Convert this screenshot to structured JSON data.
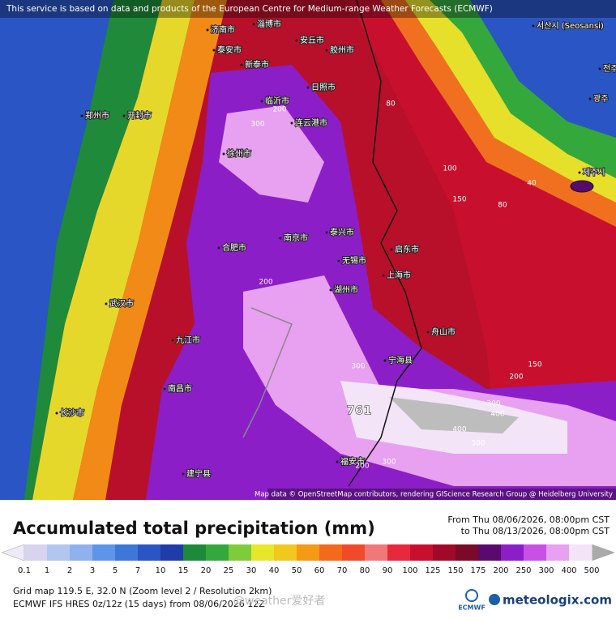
{
  "header": {
    "notice": "This service is based on data and products of the European Centre for Medium-range Weather Forecasts (ECMWF)"
  },
  "map": {
    "attribution": "Map data © OpenStreetMap contributors, rendering GIScience Research Group @ Heidelberg University",
    "max_label": "761",
    "cities": [
      "济南市",
      "淄博市",
      "安丘市",
      "胶州市",
      "泰安市",
      "新泰市",
      "临沂市",
      "日照市",
      "连云港市",
      "郑州市",
      "开封市",
      "徐州市",
      "南京市",
      "合肥市",
      "泰兴市",
      "无锡市",
      "上海市",
      "启东市",
      "湖州市",
      "舟山市",
      "宁海县",
      "九江市",
      "南昌市",
      "武汉市",
      "长沙市",
      "福安市",
      "建宁县",
      "제주시",
      "광주",
      "서산시 (Seosansi)",
      "전주시"
    ],
    "contour_labels": [
      80,
      100,
      150,
      80,
      40,
      200,
      300,
      300,
      200,
      150,
      300,
      400,
      400,
      300,
      300,
      200,
      200
    ]
  },
  "legend": {
    "title": "Accumulated total precipitation (mm)",
    "date_from": "From Thu 08/06/2026, 08:00pm CST",
    "date_to": "to Thu 08/13/2026, 08:00pm CST",
    "levels": [
      0.1,
      1,
      2,
      3,
      5,
      7,
      10,
      15,
      20,
      25,
      30,
      40,
      50,
      60,
      70,
      80,
      90,
      100,
      125,
      150,
      175,
      200,
      250,
      300,
      400,
      500
    ],
    "colors": [
      "#d6d4ee",
      "#b3c6ef",
      "#8fb2ee",
      "#5f95e6",
      "#3c77d9",
      "#2a55c4",
      "#1f3ca8",
      "#1c8a3a",
      "#35a83c",
      "#7fcc3a",
      "#e6e62a",
      "#f0c81e",
      "#f59a14",
      "#f26a1a",
      "#ef4a2a",
      "#f07878",
      "#e8283c",
      "#c8102e",
      "#a00a28",
      "#7a0a28",
      "#5a0a6e",
      "#8c1ec8",
      "#c850e6",
      "#e8a0f0",
      "#f4e4f8"
    ]
  },
  "footer": {
    "grid": "Grid map 119.5 E, 32.0 N (Zoom level 2 / Resolution 2km)",
    "model": "ECMWF IFS HRES 0z/12z (15 days) from 08/06/2026 12Z",
    "watermark": "@weather爱好者",
    "ecmwf": "ECMWF",
    "brand": "meteologix.com"
  }
}
